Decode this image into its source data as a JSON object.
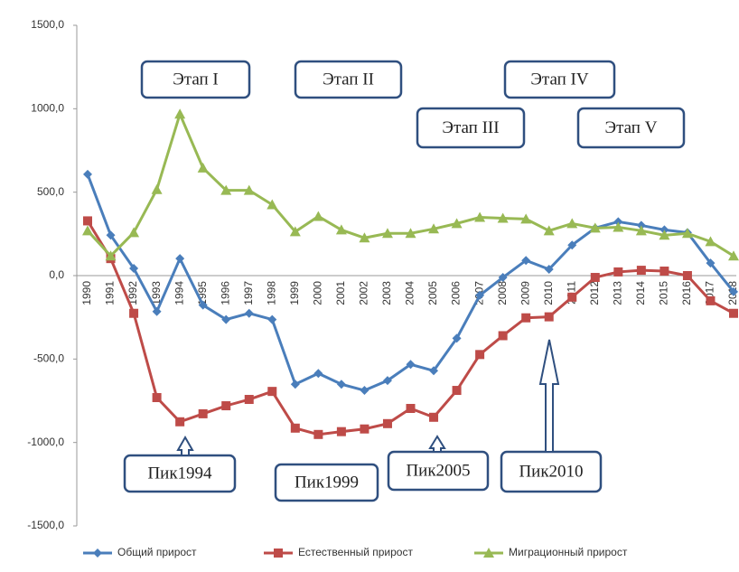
{
  "chart_data": {
    "type": "line",
    "categories": [
      "1990",
      "1991",
      "1992",
      "1993",
      "1994",
      "1995",
      "1996",
      "1997",
      "1998",
      "1999",
      "2000",
      "2001",
      "2002",
      "2003",
      "2004",
      "2005",
      "2006",
      "2007",
      "2008",
      "2009",
      "2010",
      "2011",
      "2012",
      "2013",
      "2014",
      "2015",
      "2016",
      "2017",
      "2018"
    ],
    "series": [
      {
        "name": "Общий прирост",
        "color": "#4a7ebb",
        "marker": "diamond",
        "values": [
          607,
          242,
          43,
          -215,
          102,
          -177,
          -263,
          -226,
          -263,
          -651,
          -586,
          -651,
          -688,
          -629,
          -532,
          -570,
          -376,
          -118,
          -11,
          91,
          38,
          183,
          285,
          323,
          301,
          274,
          258,
          75,
          -97
        ]
      },
      {
        "name": "Естественный прирост",
        "color": "#be4b48",
        "marker": "square",
        "values": [
          328,
          102,
          -226,
          -731,
          -876,
          -828,
          -780,
          -742,
          -694,
          -914,
          -952,
          -935,
          -919,
          -887,
          -796,
          -849,
          -688,
          -473,
          -360,
          -253,
          -247,
          -129,
          -11,
          22,
          32,
          27,
          0,
          -151,
          -226
        ]
      },
      {
        "name": "Миграционный прирост",
        "color": "#98b954",
        "marker": "triangle",
        "values": [
          269,
          118,
          258,
          516,
          968,
          645,
          511,
          511,
          425,
          263,
          355,
          274,
          226,
          253,
          253,
          280,
          312,
          349,
          344,
          339,
          269,
          312,
          285,
          290,
          269,
          242,
          253,
          204,
          118
        ]
      }
    ],
    "ylim": [
      -1500,
      1500
    ],
    "yticks": [
      {
        "value": 1500,
        "label": "1500,0"
      },
      {
        "value": 1000,
        "label": "1000,0"
      },
      {
        "value": 500,
        "label": "500,0"
      },
      {
        "value": 0,
        "label": "0,0"
      },
      {
        "value": -500,
        "label": "-500,0"
      },
      {
        "value": -1000,
        "label": "-1000,0"
      },
      {
        "value": -1500,
        "label": "-1500,0"
      }
    ],
    "annotations": [
      {
        "text": "Этап I"
      },
      {
        "text": "Этап II"
      },
      {
        "text": "Этап III"
      },
      {
        "text": "Этап IV"
      },
      {
        "text": "Этап V"
      },
      {
        "text": "Пик1994"
      },
      {
        "text": "Пик1999"
      },
      {
        "text": "Пик2005"
      },
      {
        "text": "Пик2010"
      }
    ],
    "legend": "bottom"
  }
}
